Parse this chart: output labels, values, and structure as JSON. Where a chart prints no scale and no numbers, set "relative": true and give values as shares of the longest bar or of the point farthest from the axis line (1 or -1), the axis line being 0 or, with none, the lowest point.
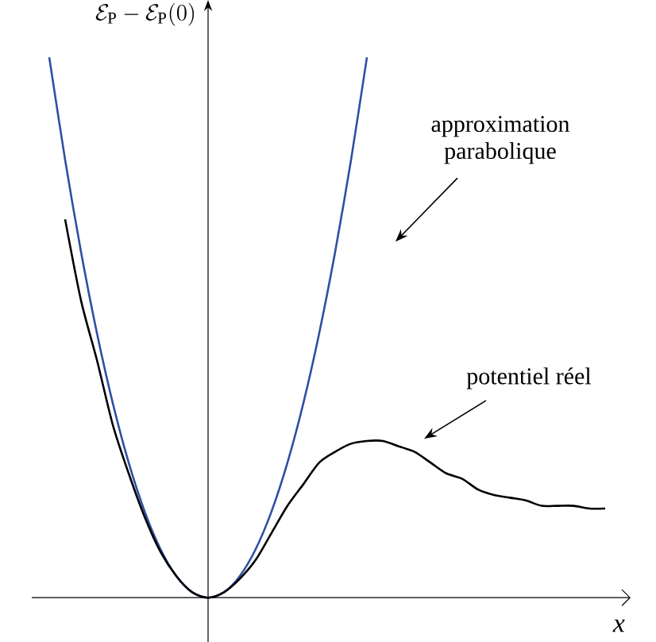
{
  "chart_data": {
    "type": "line",
    "relative": true,
    "ylabel": "\\mathcal{E}_{\\mathrm{P}}-\\mathcal{E}_{\\mathrm{P}}(0)",
    "xlabel": "x",
    "categories": [
      null,
      null,
      null,
      null,
      null,
      null,
      null,
      null,
      null,
      null,
      null,
      null,
      null,
      null,
      null,
      null,
      null,
      null,
      null,
      null,
      null,
      null,
      null,
      null,
      null,
      null,
      null,
      null,
      null,
      null,
      null,
      null,
      null,
      null,
      null,
      null
    ],
    "series": [
      {
        "color": "#2e4fa3",
        "values": [
          1.0,
          0.81,
          0.64,
          0.49,
          0.36,
          0.25,
          0.16,
          0.09,
          0.04,
          0.01,
          0,
          0.01,
          0.04,
          0.09,
          0.16,
          0.25,
          0.36,
          0.49,
          0.64,
          0.81,
          1.0,
          null,
          null,
          null,
          null,
          null,
          null,
          null,
          null,
          null,
          null,
          null,
          null,
          null,
          null,
          null
        ]
      },
      {
        "color": "#000000",
        "values": [
          null,
          0.7,
          0.55,
          0.44,
          0.32,
          0.23,
          0.15,
          0.085,
          0.04,
          0.01,
          0,
          0.01,
          0.035,
          0.07,
          0.12,
          0.17,
          0.21,
          0.25,
          0.27,
          0.285,
          0.29,
          0.29,
          0.28,
          0.27,
          0.25,
          0.23,
          0.22,
          0.2,
          0.19,
          0.185,
          0.18,
          0.17,
          0.17,
          0.17,
          0.165,
          0.165
        ]
      }
    ],
    "annotations": [
      "approximation parabolique",
      "potentiel réel"
    ]
  }
}
